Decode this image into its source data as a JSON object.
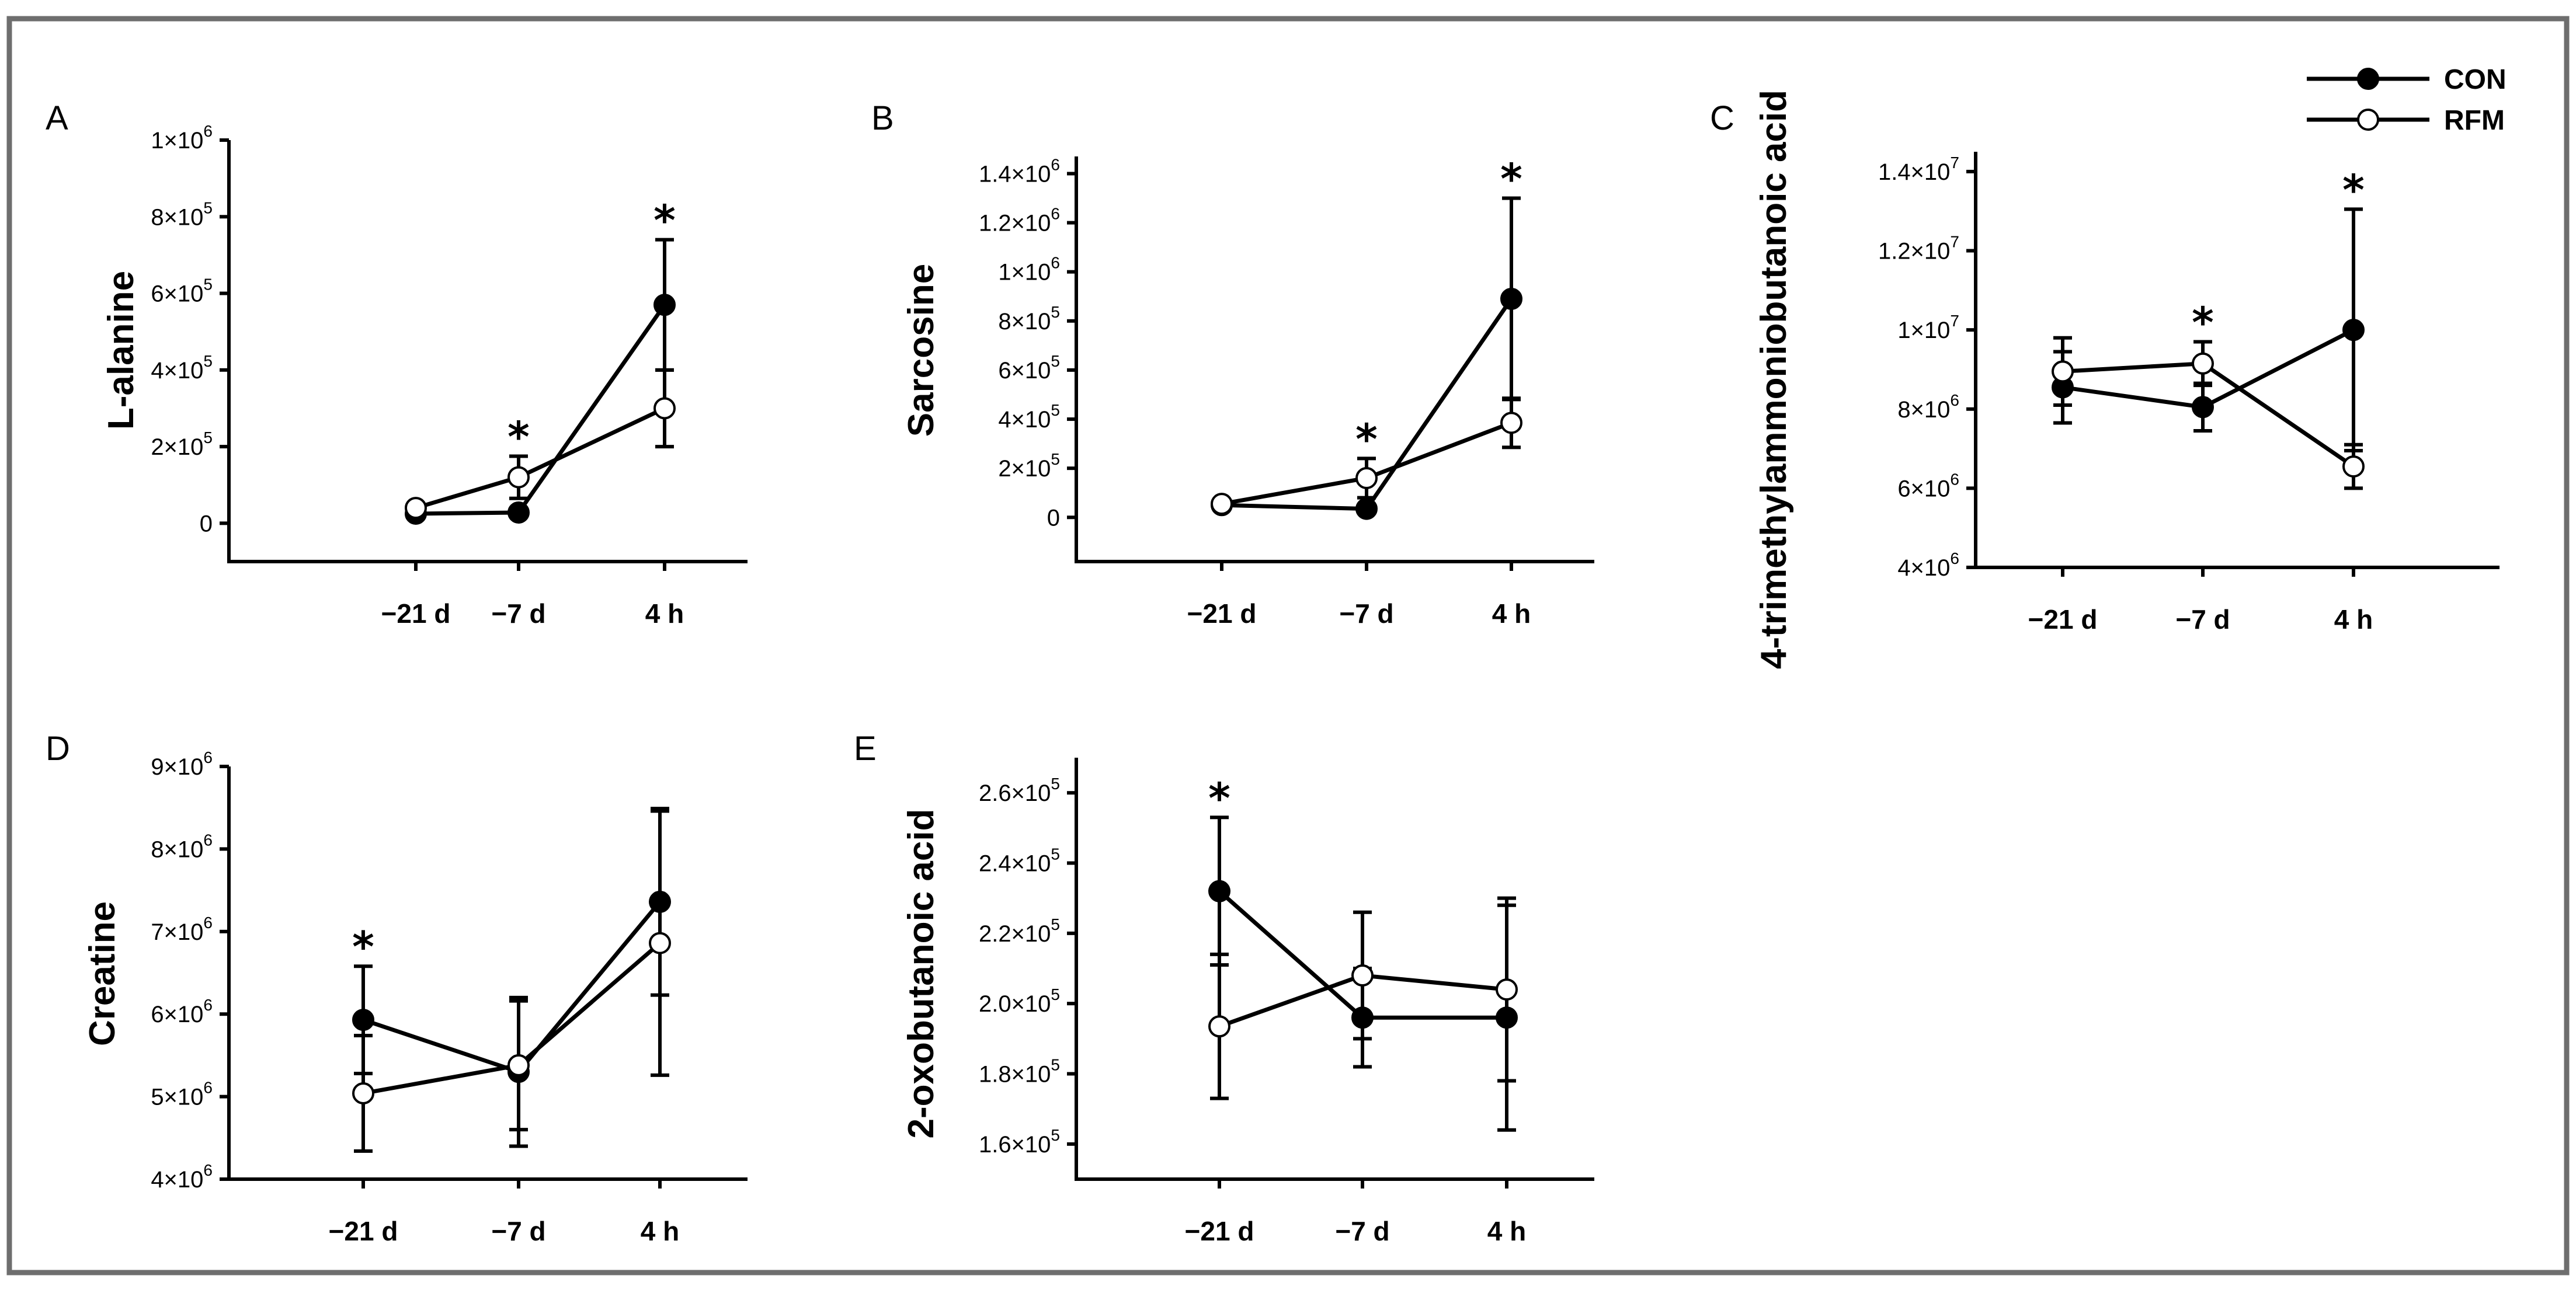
{
  "colors": {
    "frame": "#6e6e6e",
    "ink": "#000000",
    "background": "#ffffff",
    "open_marker": "#ffffff"
  },
  "legend": {
    "items": [
      {
        "name": "CON",
        "marker": "filled"
      },
      {
        "name": "RFM",
        "marker": "open"
      }
    ]
  },
  "chart_data": [
    {
      "type": "line",
      "panel": "A",
      "ylabel": "L-alanine",
      "categories": [
        "−21 d",
        "−7 d",
        "4 h"
      ],
      "ylim": [
        -100000,
        1000000
      ],
      "yticks": [
        {
          "value": 0,
          "mant": "0",
          "exp": ""
        },
        {
          "value": 200000,
          "mant": "2×10",
          "exp": "5"
        },
        {
          "value": 400000,
          "mant": "4×10",
          "exp": "5"
        },
        {
          "value": 600000,
          "mant": "6×10",
          "exp": "5"
        },
        {
          "value": 800000,
          "mant": "8×10",
          "exp": "5"
        },
        {
          "value": 1000000,
          "mant": "1×10",
          "exp": "6"
        }
      ],
      "series": [
        {
          "name": "CON",
          "values": [
            25000,
            28000,
            570000
          ],
          "err": [
            0,
            0,
            170000
          ]
        },
        {
          "name": "RFM",
          "values": [
            40000,
            120000,
            300000
          ],
          "err": [
            0,
            55000,
            100000
          ]
        }
      ],
      "significant": [
        {
          "category": "−7 d",
          "marker": "*"
        },
        {
          "category": "4 h",
          "marker": "*"
        }
      ]
    },
    {
      "type": "line",
      "panel": "B",
      "ylabel": "Sarcosine",
      "categories": [
        "−21 d",
        "−7 d",
        "4 h"
      ],
      "ylim": [
        -180000,
        1470000
      ],
      "yticks": [
        {
          "value": 0,
          "mant": "0",
          "exp": ""
        },
        {
          "value": 200000,
          "mant": "2×10",
          "exp": "5"
        },
        {
          "value": 400000,
          "mant": "4×10",
          "exp": "5"
        },
        {
          "value": 600000,
          "mant": "6×10",
          "exp": "5"
        },
        {
          "value": 800000,
          "mant": "8×10",
          "exp": "5"
        },
        {
          "value": 1000000,
          "mant": "1×10",
          "exp": "6"
        },
        {
          "value": 1200000,
          "mant": "1.2×10",
          "exp": "6"
        },
        {
          "value": 1400000,
          "mant": "1.4×10",
          "exp": "6"
        }
      ],
      "series": [
        {
          "name": "CON",
          "values": [
            50000,
            35000,
            890000
          ],
          "err": [
            0,
            0,
            410000
          ]
        },
        {
          "name": "RFM",
          "values": [
            55000,
            160000,
            385000
          ],
          "err": [
            0,
            80000,
            100000
          ]
        }
      ],
      "significant": [
        {
          "category": "−7 d",
          "marker": "*"
        },
        {
          "category": "4 h",
          "marker": "*"
        }
      ]
    },
    {
      "type": "line",
      "panel": "C",
      "ylabel": "4-trimethylammoniobutanoic acid",
      "categories": [
        "−21 d",
        "−7 d",
        "4 h"
      ],
      "ylim": [
        4000000,
        14500000
      ],
      "yticks": [
        {
          "value": 4000000,
          "mant": "4×10",
          "exp": "6"
        },
        {
          "value": 6000000,
          "mant": "6×10",
          "exp": "6"
        },
        {
          "value": 8000000,
          "mant": "8×10",
          "exp": "6"
        },
        {
          "value": 10000000,
          "mant": "1×10",
          "exp": "7"
        },
        {
          "value": 12000000,
          "mant": "1.2×10",
          "exp": "7"
        },
        {
          "value": 14000000,
          "mant": "1.4×10",
          "exp": "7"
        }
      ],
      "series": [
        {
          "name": "CON",
          "values": [
            8550000,
            8050000,
            10000000
          ],
          "err": [
            900000,
            600000,
            3050000
          ]
        },
        {
          "name": "RFM",
          "values": [
            8950000,
            9150000,
            6550000
          ],
          "err": [
            850000,
            550000,
            550000
          ]
        }
      ],
      "significant": [
        {
          "category": "−7 d",
          "marker": "*"
        },
        {
          "category": "4 h",
          "marker": "*"
        }
      ]
    },
    {
      "type": "line",
      "panel": "D",
      "ylabel": "Creatine",
      "categories": [
        "−21 d",
        "−7 d",
        "4 h"
      ],
      "ylim": [
        4000000,
        9000000
      ],
      "yticks": [
        {
          "value": 4000000,
          "mant": "4×10",
          "exp": "6"
        },
        {
          "value": 5000000,
          "mant": "5×10",
          "exp": "6"
        },
        {
          "value": 6000000,
          "mant": "6×10",
          "exp": "6"
        },
        {
          "value": 7000000,
          "mant": "7×10",
          "exp": "6"
        },
        {
          "value": 8000000,
          "mant": "8×10",
          "exp": "6"
        },
        {
          "value": 9000000,
          "mant": "9×10",
          "exp": "6"
        }
      ],
      "series": [
        {
          "name": "CON",
          "values": [
            5930000,
            5300000,
            7360000
          ],
          "err": [
            650000,
            900000,
            1130000
          ]
        },
        {
          "name": "RFM",
          "values": [
            5040000,
            5380000,
            6860000
          ],
          "err": [
            700000,
            780000,
            1600000
          ]
        }
      ],
      "significant": [
        {
          "category": "−21 d",
          "marker": "*"
        }
      ]
    },
    {
      "type": "line",
      "panel": "E",
      "ylabel": "2-oxobutanoic acid",
      "categories": [
        "−21 d",
        "−7 d",
        "4 h"
      ],
      "ylim": [
        150000,
        270000
      ],
      "yticks": [
        {
          "value": 160000,
          "mant": "1.6×10",
          "exp": "5"
        },
        {
          "value": 180000,
          "mant": "1.8×10",
          "exp": "5"
        },
        {
          "value": 200000,
          "mant": "2.0×10",
          "exp": "5"
        },
        {
          "value": 220000,
          "mant": "2.2×10",
          "exp": "5"
        },
        {
          "value": 240000,
          "mant": "2.4×10",
          "exp": "5"
        },
        {
          "value": 260000,
          "mant": "2.6×10",
          "exp": "5"
        }
      ],
      "series": [
        {
          "name": "CON",
          "values": [
            232000,
            196000,
            196000
          ],
          "err": [
            21000,
            14000,
            32000
          ]
        },
        {
          "name": "RFM",
          "values": [
            193500,
            208000,
            204000
          ],
          "err": [
            20500,
            18000,
            26000
          ]
        }
      ],
      "significant": [
        {
          "category": "−21 d",
          "marker": "*"
        }
      ]
    }
  ]
}
